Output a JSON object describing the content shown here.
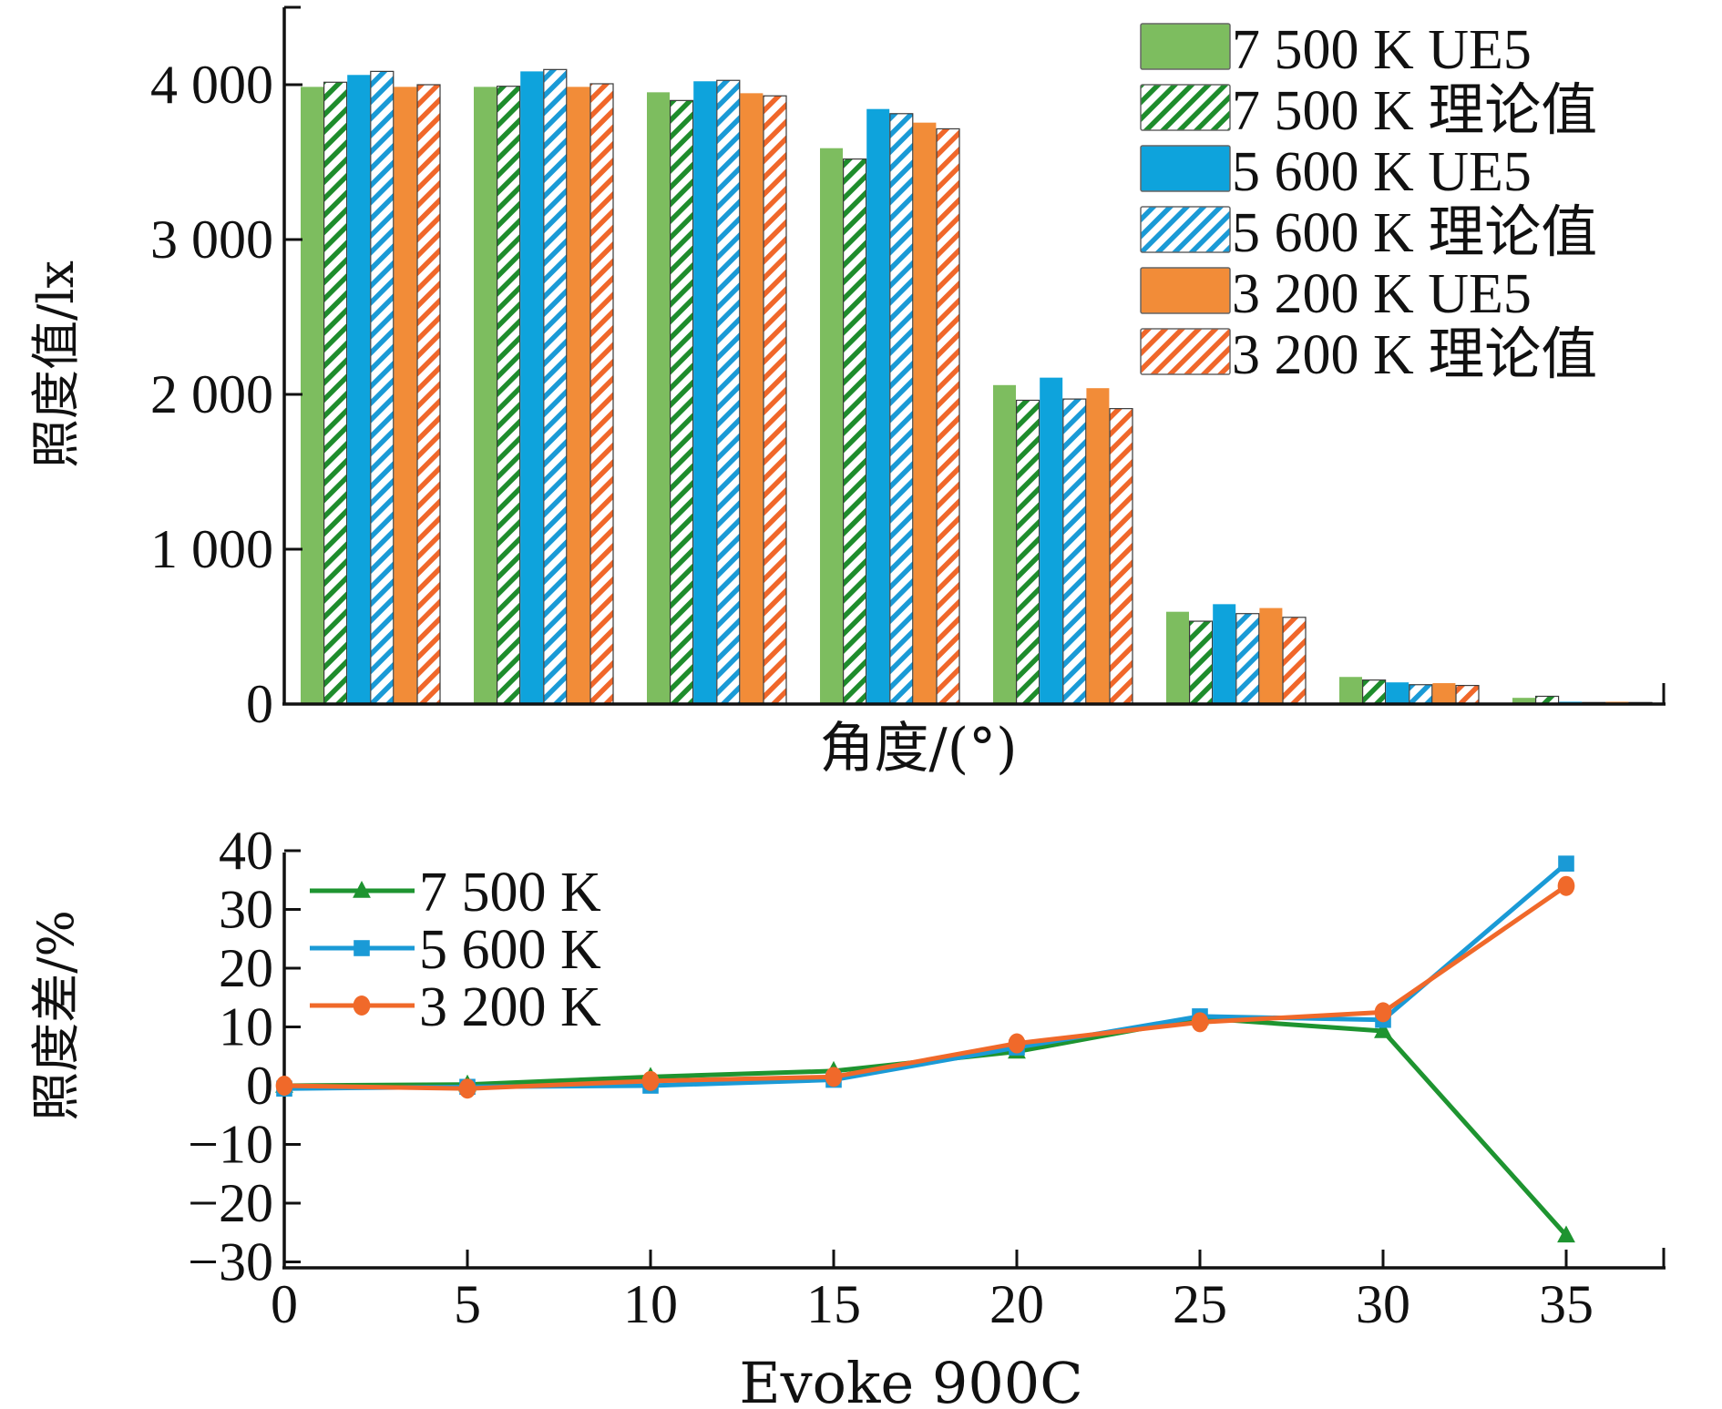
{
  "chart_data": [
    {
      "type": "bar",
      "title": "",
      "xlabel": "角度/(°)",
      "ylabel": "照度值/lx",
      "ylim": [
        0,
        4500
      ],
      "yticks": [
        0,
        1000,
        2000,
        3000,
        4000
      ],
      "ytick_labels": [
        "0",
        "1 000",
        "2 000",
        "3 000",
        "4 000"
      ],
      "categories": [
        "0",
        "5",
        "10",
        "15",
        "20",
        "25",
        "30",
        "35"
      ],
      "category_labels_shown": false,
      "grid": false,
      "legend_position": "top-right",
      "series": [
        {
          "name": "7 500 K UE5",
          "color": "#7dbd5f",
          "pattern": "solid",
          "values": [
            3986,
            3986,
            3951,
            3590,
            2060,
            596,
            175,
            40
          ]
        },
        {
          "name": "7 500 K 理论值",
          "color": "#1e8c2c",
          "pattern": "hatched",
          "values": [
            4016,
            3990,
            3898,
            3520,
            1962,
            535,
            155,
            50
          ]
        },
        {
          "name": "5 600 K UE5",
          "color": "#0ea3dc",
          "pattern": "solid",
          "values": [
            4063,
            4086,
            4022,
            3843,
            2108,
            645,
            140,
            15
          ]
        },
        {
          "name": "5 600 K 理论值",
          "color": "#1a9ad6",
          "pattern": "hatched",
          "values": [
            4086,
            4098,
            4028,
            3813,
            1970,
            584,
            125,
            10
          ]
        },
        {
          "name": "3 200 K UE5",
          "color": "#f28c38",
          "pattern": "solid",
          "values": [
            3986,
            3986,
            3945,
            3755,
            2040,
            620,
            135,
            15
          ]
        },
        {
          "name": "3 200 K 理论值",
          "color": "#f0672a",
          "pattern": "hatched",
          "values": [
            4000,
            4006,
            3928,
            3715,
            1908,
            560,
            120,
            10
          ]
        }
      ]
    },
    {
      "type": "line",
      "title": "",
      "xlabel": "Evoke 900C",
      "ylabel": "照度差/%",
      "xlim": [
        0,
        37.5
      ],
      "ylim": [
        -30,
        40
      ],
      "xticks": [
        0,
        5,
        10,
        15,
        20,
        25,
        30,
        35
      ],
      "xtick_labels": [
        "0",
        "5",
        "10",
        "15",
        "20",
        "25",
        "30",
        "35"
      ],
      "yticks": [
        40,
        30,
        20,
        10,
        0,
        -10,
        -20,
        -30
      ],
      "ytick_labels": [
        "40",
        "30",
        "20",
        "10",
        "0",
        "−10",
        "−20",
        "−30"
      ],
      "grid": false,
      "legend_position": "top-left",
      "x": [
        0,
        5,
        10,
        15,
        20,
        25,
        30,
        35
      ],
      "series": [
        {
          "name": "7 500 K",
          "color": "#1e9430",
          "marker": "triangle",
          "values": [
            0,
            0.2,
            1.5,
            2.5,
            5.8,
            11.5,
            9.3,
            -25.5
          ]
        },
        {
          "name": "5 600 K",
          "color": "#1a9ad6",
          "marker": "square",
          "values": [
            -0.5,
            -0.2,
            0,
            1,
            6.5,
            11.8,
            11.2,
            37.8
          ]
        },
        {
          "name": "3 200 K",
          "color": "#f0692a",
          "marker": "circle",
          "values": [
            0,
            -0.5,
            0.8,
            1.5,
            7.2,
            10.8,
            12.5,
            34
          ]
        }
      ]
    }
  ]
}
